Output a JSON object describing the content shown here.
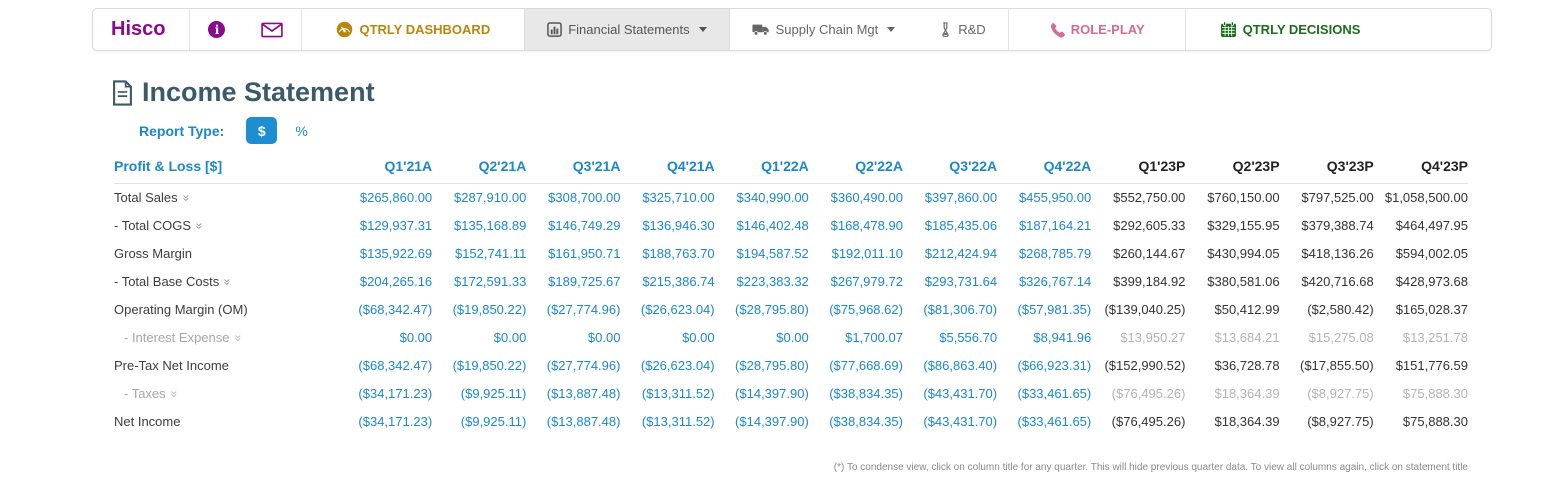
{
  "colors": {
    "brand_purple": "#8b0a8b",
    "dashboard_gold": "#b8860b",
    "roleplay_pink": "#d36b94",
    "decisions_green": "#1b6e1b",
    "accent_blue": "#1d87c9",
    "title_slate": "#3a5a6a",
    "muted_gray": "#b3b3b3"
  },
  "nav": {
    "brand": "Hisco",
    "dashboard": "QTRLY DASHBOARD",
    "financial_statements": "Financial Statements",
    "supply_chain": "Supply Chain Mgt",
    "rd": "R&D",
    "role_play": "ROLE-PLAY",
    "qtrly_decisions": "QTRLY DECISIONS"
  },
  "page": {
    "title": "Income Statement"
  },
  "report_type": {
    "label": "Report Type:",
    "options": [
      {
        "label": "$",
        "selected": true
      },
      {
        "label": "%",
        "selected": false
      }
    ]
  },
  "table": {
    "header_label": "Profit & Loss [$]",
    "columns": [
      {
        "label": "Q1'21A",
        "type": "actual"
      },
      {
        "label": "Q2'21A",
        "type": "actual"
      },
      {
        "label": "Q3'21A",
        "type": "actual"
      },
      {
        "label": "Q4'21A",
        "type": "actual"
      },
      {
        "label": "Q1'22A",
        "type": "actual"
      },
      {
        "label": "Q2'22A",
        "type": "actual"
      },
      {
        "label": "Q3'22A",
        "type": "actual"
      },
      {
        "label": "Q4'22A",
        "type": "actual"
      },
      {
        "label": "Q1'23P",
        "type": "projection"
      },
      {
        "label": "Q2'23P",
        "type": "projection"
      },
      {
        "label": "Q3'23P",
        "type": "projection"
      },
      {
        "label": "Q4'23P",
        "type": "projection"
      }
    ],
    "rows": [
      {
        "label": "Total Sales",
        "chevron": true,
        "indent": 0,
        "muted": false,
        "values": [
          "$265,860.00",
          "$287,910.00",
          "$308,700.00",
          "$325,710.00",
          "$340,990.00",
          "$360,490.00",
          "$397,860.00",
          "$455,950.00",
          "$552,750.00",
          "$760,150.00",
          "$797,525.00",
          "$1,058,500.00"
        ]
      },
      {
        "label": "- Total COGS",
        "chevron": true,
        "indent": 0,
        "muted": false,
        "values": [
          "$129,937.31",
          "$135,168.89",
          "$146,749.29",
          "$136,946.30",
          "$146,402.48",
          "$168,478.90",
          "$185,435.06",
          "$187,164.21",
          "$292,605.33",
          "$329,155.95",
          "$379,388.74",
          "$464,497.95"
        ]
      },
      {
        "label": "Gross Margin",
        "chevron": false,
        "indent": 0,
        "muted": false,
        "values": [
          "$135,922.69",
          "$152,741.11",
          "$161,950.71",
          "$188,763.70",
          "$194,587.52",
          "$192,011.10",
          "$212,424.94",
          "$268,785.79",
          "$260,144.67",
          "$430,994.05",
          "$418,136.26",
          "$594,002.05"
        ]
      },
      {
        "label": "- Total Base Costs",
        "chevron": true,
        "indent": 0,
        "muted": false,
        "values": [
          "$204,265.16",
          "$172,591.33",
          "$189,725.67",
          "$215,386.74",
          "$223,383.32",
          "$267,979.72",
          "$293,731.64",
          "$326,767.14",
          "$399,184.92",
          "$380,581.06",
          "$420,716.68",
          "$428,973.68"
        ]
      },
      {
        "label": "Operating Margin (OM)",
        "chevron": false,
        "indent": 0,
        "muted": false,
        "values": [
          "($68,342.47)",
          "($19,850.22)",
          "($27,774.96)",
          "($26,623.04)",
          "($28,795.80)",
          "($75,968.62)",
          "($81,306.70)",
          "($57,981.35)",
          "($139,040.25)",
          "$50,412.99",
          "($2,580.42)",
          "$165,028.37"
        ]
      },
      {
        "label": "- Interest Expense",
        "chevron": true,
        "indent": 1,
        "muted": true,
        "values": [
          "$0.00",
          "$0.00",
          "$0.00",
          "$0.00",
          "$0.00",
          "$1,700.07",
          "$5,556.70",
          "$8,941.96",
          "$13,950.27",
          "$13,684.21",
          "$15,275.08",
          "$13,251.78"
        ]
      },
      {
        "label": "Pre-Tax Net Income",
        "chevron": false,
        "indent": 0,
        "muted": false,
        "values": [
          "($68,342.47)",
          "($19,850.22)",
          "($27,774.96)",
          "($26,623.04)",
          "($28,795.80)",
          "($77,668.69)",
          "($86,863.40)",
          "($66,923.31)",
          "($152,990.52)",
          "$36,728.78",
          "($17,855.50)",
          "$151,776.59"
        ]
      },
      {
        "label": "- Taxes",
        "chevron": true,
        "indent": 1,
        "muted": true,
        "values": [
          "($34,171.23)",
          "($9,925.11)",
          "($13,887.48)",
          "($13,311.52)",
          "($14,397.90)",
          "($38,834.35)",
          "($43,431.70)",
          "($33,461.65)",
          "($76,495.26)",
          "$18,364.39",
          "($8,927.75)",
          "$75,888.30"
        ]
      },
      {
        "label": "Net Income",
        "chevron": false,
        "indent": 0,
        "muted": false,
        "values": [
          "($34,171.23)",
          "($9,925.11)",
          "($13,887.48)",
          "($13,311.52)",
          "($14,397.90)",
          "($38,834.35)",
          "($43,431.70)",
          "($33,461.65)",
          "($76,495.26)",
          "$18,364.39",
          "($8,927.75)",
          "$75,888.30"
        ]
      }
    ]
  },
  "footnote": "(*) To condense view, click on column title for any quarter. This will hide previous quarter data. To view all columns again, click on statement title"
}
